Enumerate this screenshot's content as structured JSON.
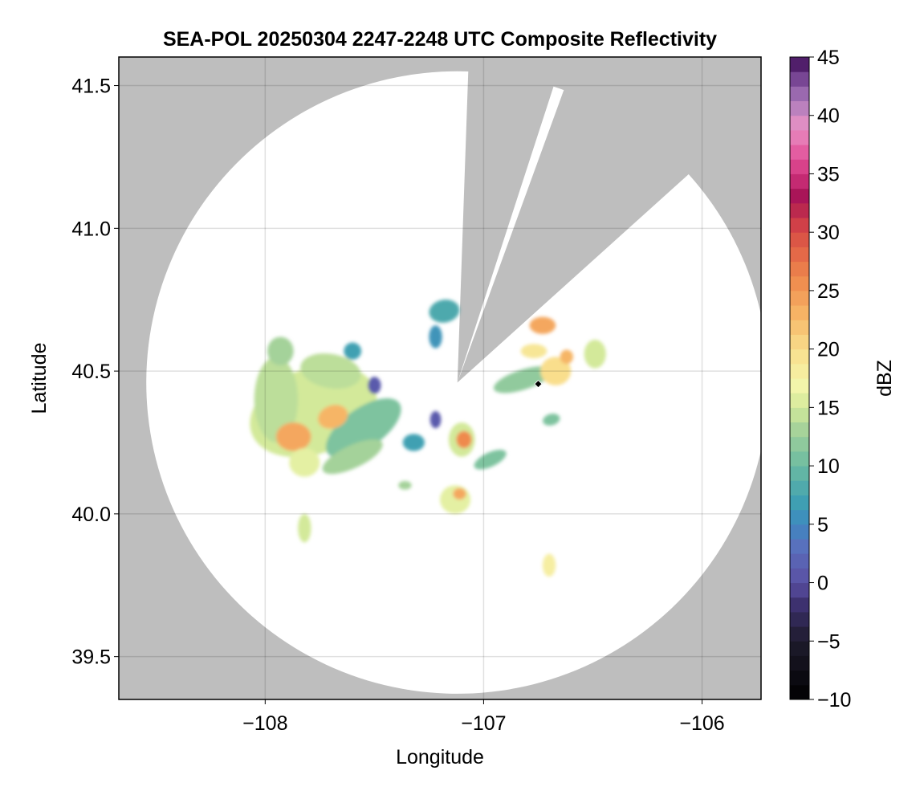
{
  "chart_data": {
    "type": "heatmap",
    "title": "SEA-POL 20250304 2247-2248 UTC Composite Reflectivity",
    "xlabel": "Longitude",
    "ylabel": "Latitude",
    "xlim": [
      -108.67,
      -105.73
    ],
    "ylim": [
      39.35,
      41.6
    ],
    "x_ticks": [
      -108,
      -107,
      -106
    ],
    "x_tick_labels": [
      "−108",
      "−107",
      "−106"
    ],
    "y_ticks": [
      39.5,
      40.0,
      40.5,
      41.0,
      41.5
    ],
    "y_tick_labels": [
      "39.5",
      "40.0",
      "40.5",
      "41.0",
      "41.5"
    ],
    "grid": true,
    "background_color": "#bebebe",
    "coverage_color": "#ffffff",
    "radar": {
      "center": [
        -107.12,
        40.46
      ],
      "range_deg_lat": 1.09,
      "blocked_sectors": [
        {
          "from_az_deg": 2,
          "to_az_deg": 18
        },
        {
          "from_az_deg": 20,
          "to_az_deg": 48
        }
      ]
    },
    "marker": {
      "lon": -106.75,
      "lat": 40.455,
      "shape": "diamond",
      "color": "#000000"
    },
    "colorbar": {
      "label": "dBZ",
      "min": -10,
      "max": 45,
      "step": 1.25,
      "ticks": [
        -10,
        -5,
        0,
        5,
        10,
        15,
        20,
        25,
        30,
        35,
        40,
        45
      ],
      "tick_labels": [
        "−10",
        "−5",
        "0",
        "5",
        "10",
        "15",
        "20",
        "25",
        "30",
        "35",
        "40",
        "45"
      ],
      "colormap_stops": [
        [
          -10,
          "#000000"
        ],
        [
          -5,
          "#1e1b2c"
        ],
        [
          -2,
          "#3b2f6c"
        ],
        [
          0,
          "#5a4fa3"
        ],
        [
          3,
          "#5a6fbd"
        ],
        [
          5,
          "#3e88c0"
        ],
        [
          7,
          "#3fa0b2"
        ],
        [
          10,
          "#6bbba2"
        ],
        [
          13,
          "#a4d29a"
        ],
        [
          15,
          "#d3e99a"
        ],
        [
          17,
          "#f4f6ab"
        ],
        [
          20,
          "#f9de8c"
        ],
        [
          23,
          "#f6b566"
        ],
        [
          26,
          "#ef8a4d"
        ],
        [
          29,
          "#df5c46"
        ],
        [
          31,
          "#cc3a48"
        ],
        [
          33,
          "#a61355"
        ],
        [
          35,
          "#d2357f"
        ],
        [
          37,
          "#e460a3"
        ],
        [
          39,
          "#e892c5"
        ],
        [
          41,
          "#b07dbc"
        ],
        [
          42.5,
          "#8b5aa6"
        ],
        [
          44,
          "#5e2a7a"
        ],
        [
          45,
          "#3a0d52"
        ]
      ]
    },
    "echo_cells": [
      {
        "lon": -107.78,
        "lat": 40.36,
        "rx": 0.3,
        "ry": 0.15,
        "dbz": 15,
        "rot": -20
      },
      {
        "lon": -107.95,
        "lat": 40.4,
        "rx": 0.1,
        "ry": 0.15,
        "dbz": 14,
        "rot": 0
      },
      {
        "lon": -107.55,
        "lat": 40.3,
        "rx": 0.2,
        "ry": 0.07,
        "dbz": 11,
        "rot": -35
      },
      {
        "lon": -107.7,
        "lat": 40.5,
        "rx": 0.14,
        "ry": 0.06,
        "dbz": 14,
        "rot": 10
      },
      {
        "lon": -107.87,
        "lat": 40.27,
        "rx": 0.08,
        "ry": 0.05,
        "dbz": 24,
        "rot": 0
      },
      {
        "lon": -107.69,
        "lat": 40.34,
        "rx": 0.07,
        "ry": 0.04,
        "dbz": 23,
        "rot": -20
      },
      {
        "lon": -107.6,
        "lat": 40.2,
        "rx": 0.15,
        "ry": 0.04,
        "dbz": 13,
        "rot": -25
      },
      {
        "lon": -107.82,
        "lat": 40.18,
        "rx": 0.07,
        "ry": 0.05,
        "dbz": 16,
        "rot": 0
      },
      {
        "lon": -107.93,
        "lat": 40.57,
        "rx": 0.06,
        "ry": 0.05,
        "dbz": 13,
        "rot": 0
      },
      {
        "lon": -107.6,
        "lat": 40.57,
        "rx": 0.04,
        "ry": 0.03,
        "dbz": 7,
        "rot": 0
      },
      {
        "lon": -107.5,
        "lat": 40.45,
        "rx": 0.03,
        "ry": 0.03,
        "dbz": 1,
        "rot": 0
      },
      {
        "lon": -107.32,
        "lat": 40.25,
        "rx": 0.05,
        "ry": 0.03,
        "dbz": 7,
        "rot": 0
      },
      {
        "lon": -107.22,
        "lat": 40.33,
        "rx": 0.025,
        "ry": 0.03,
        "dbz": 1,
        "rot": 0
      },
      {
        "lon": -107.1,
        "lat": 40.26,
        "rx": 0.06,
        "ry": 0.06,
        "dbz": 15,
        "rot": 0
      },
      {
        "lon": -107.09,
        "lat": 40.26,
        "rx": 0.035,
        "ry": 0.03,
        "dbz": 26,
        "rot": 0
      },
      {
        "lon": -106.97,
        "lat": 40.19,
        "rx": 0.08,
        "ry": 0.025,
        "dbz": 11,
        "rot": -25
      },
      {
        "lon": -107.13,
        "lat": 40.05,
        "rx": 0.07,
        "ry": 0.05,
        "dbz": 16,
        "rot": 0
      },
      {
        "lon": -107.11,
        "lat": 40.07,
        "rx": 0.03,
        "ry": 0.02,
        "dbz": 24,
        "rot": 0
      },
      {
        "lon": -107.36,
        "lat": 40.1,
        "rx": 0.03,
        "ry": 0.015,
        "dbz": 13,
        "rot": 0
      },
      {
        "lon": -107.18,
        "lat": 40.71,
        "rx": 0.07,
        "ry": 0.04,
        "dbz": 8,
        "rot": -10
      },
      {
        "lon": -107.22,
        "lat": 40.62,
        "rx": 0.03,
        "ry": 0.04,
        "dbz": 6,
        "rot": 0
      },
      {
        "lon": -106.82,
        "lat": 40.47,
        "rx": 0.14,
        "ry": 0.035,
        "dbz": 12,
        "rot": -18
      },
      {
        "lon": -106.77,
        "lat": 40.57,
        "rx": 0.06,
        "ry": 0.025,
        "dbz": 19,
        "rot": 0
      },
      {
        "lon": -106.67,
        "lat": 40.5,
        "rx": 0.07,
        "ry": 0.05,
        "dbz": 20,
        "rot": 0
      },
      {
        "lon": -106.73,
        "lat": 40.66,
        "rx": 0.06,
        "ry": 0.03,
        "dbz": 24,
        "rot": 0
      },
      {
        "lon": -106.49,
        "lat": 40.56,
        "rx": 0.05,
        "ry": 0.05,
        "dbz": 15,
        "rot": 0
      },
      {
        "lon": -106.62,
        "lat": 40.55,
        "rx": 0.03,
        "ry": 0.025,
        "dbz": 23,
        "rot": 0
      },
      {
        "lon": -106.69,
        "lat": 40.33,
        "rx": 0.04,
        "ry": 0.02,
        "dbz": 11,
        "rot": -15
      },
      {
        "lon": -106.7,
        "lat": 39.82,
        "rx": 0.03,
        "ry": 0.04,
        "dbz": 18,
        "rot": 0
      },
      {
        "lon": -107.82,
        "lat": 39.95,
        "rx": 0.03,
        "ry": 0.05,
        "dbz": 15,
        "rot": 0
      }
    ]
  }
}
